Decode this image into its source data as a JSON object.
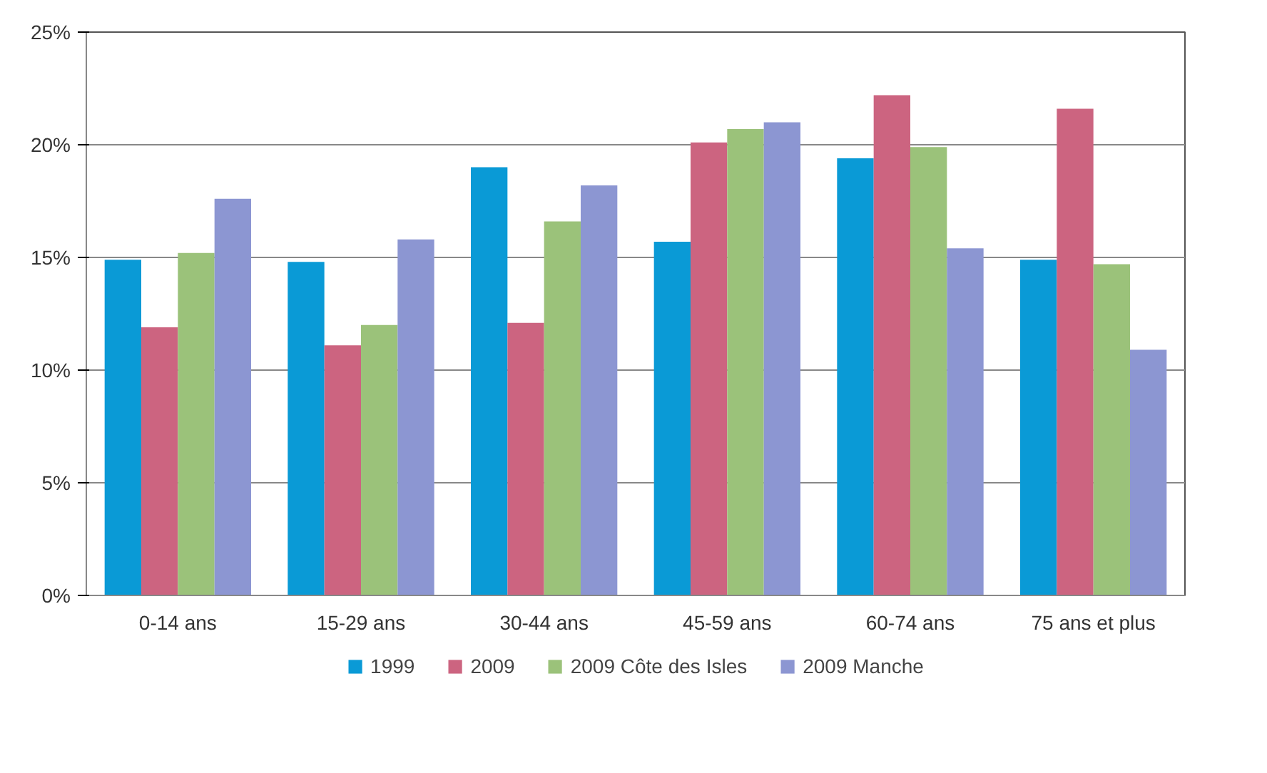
{
  "chart_data": {
    "type": "bar",
    "categories": [
      "0-14 ans",
      "15-29 ans",
      "30-44 ans",
      "45-59 ans",
      "60-74 ans",
      "75 ans et plus"
    ],
    "series": [
      {
        "name": "1999",
        "color": "#0a9ad6",
        "values": [
          14.9,
          14.8,
          19.0,
          15.7,
          19.4,
          14.9
        ]
      },
      {
        "name": "2009",
        "color": "#cc6480",
        "values": [
          11.9,
          11.1,
          12.1,
          20.1,
          22.2,
          21.6
        ]
      },
      {
        "name": "2009 Côte des Isles",
        "color": "#9bc27a",
        "values": [
          15.2,
          12.0,
          16.6,
          20.7,
          19.9,
          14.7
        ]
      },
      {
        "name": "2009 Manche",
        "color": "#8c96d2",
        "values": [
          17.6,
          15.8,
          18.2,
          21.0,
          15.4,
          10.9
        ]
      }
    ],
    "ylim": [
      0,
      25
    ],
    "yticks": [
      {
        "value": 0,
        "label": "0%"
      },
      {
        "value": 5,
        "label": "5%"
      },
      {
        "value": 10,
        "label": "10%"
      },
      {
        "value": 15,
        "label": "15%"
      },
      {
        "value": 20,
        "label": "20%"
      },
      {
        "value": 25,
        "label": "25%"
      }
    ],
    "grid": "y",
    "legend": "bottom"
  }
}
